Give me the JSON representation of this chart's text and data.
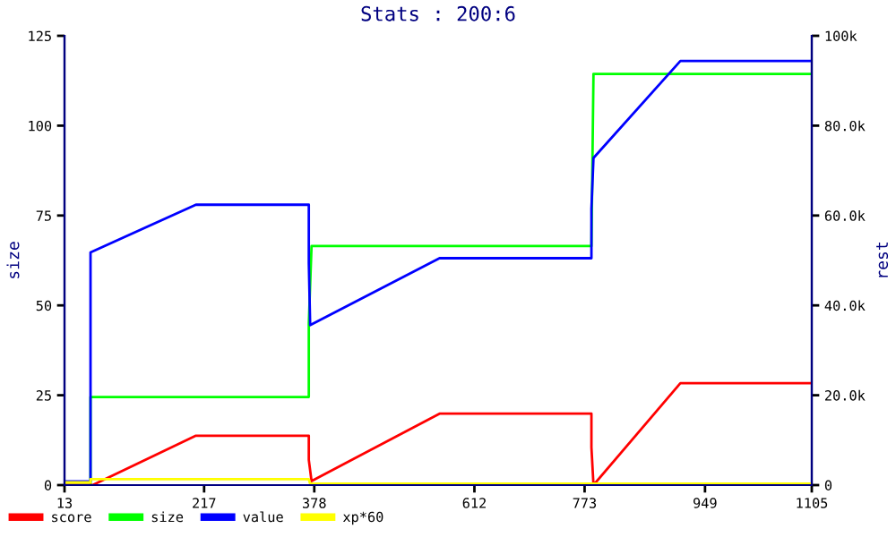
{
  "chart_data": {
    "type": "line",
    "title": "Stats : 200:6",
    "ylabel": "size",
    "y2label": "rest",
    "xlim": [
      13,
      1105
    ],
    "xticks": [
      13,
      217,
      378,
      612,
      773,
      949,
      1105
    ],
    "ylim": [
      0,
      125
    ],
    "yticks": [
      0,
      25,
      50,
      75,
      100,
      125
    ],
    "y2lim": [
      0,
      100000
    ],
    "y2ticks": [
      {
        "value": 0,
        "label": "0"
      },
      {
        "value": 20000,
        "label": "20.0k"
      },
      {
        "value": 40000,
        "label": "40.0k"
      },
      {
        "value": 60000,
        "label": "60.0k"
      },
      {
        "value": 80000,
        "label": "80.0k"
      },
      {
        "value": 100000,
        "label": "100k"
      }
    ],
    "grid": false,
    "legend": "bottom",
    "marker": "none",
    "line_style": "solid",
    "series": [
      {
        "name": "score",
        "color": "#ff0000",
        "axis": "y2",
        "x": [
          13,
          54,
          205,
          370,
          370,
          374,
          561,
          783,
          783,
          786,
          913,
          1105
        ],
        "values": [
          0,
          0,
          11000,
          11000,
          5600,
          900,
          15900,
          15900,
          8400,
          0,
          22700,
          22700
        ]
      },
      {
        "name": "size",
        "color": "#00ff00",
        "axis": "y",
        "x": [
          13,
          51,
          51,
          370,
          370,
          374,
          783,
          786,
          1105
        ],
        "values": [
          0,
          0,
          24.5,
          24.5,
          45,
          66.5,
          66.5,
          114.4,
          114.4
        ]
      },
      {
        "name": "value",
        "color": "#0000ff",
        "axis": "y2",
        "x": [
          13,
          51,
          51,
          205,
          370,
          370,
          372,
          561,
          783,
          783,
          786,
          913,
          1105
        ],
        "values": [
          800,
          800,
          51800,
          62400,
          62400,
          49400,
          35600,
          50500,
          50500,
          61500,
          72800,
          94400,
          94400
        ]
      },
      {
        "name": "xp*60",
        "color": "#ffff00",
        "axis": "y2",
        "x": [
          13,
          51,
          51,
          370,
          372,
          1105
        ],
        "values": [
          600,
          600,
          1300,
          1300,
          300,
          300
        ]
      }
    ]
  }
}
